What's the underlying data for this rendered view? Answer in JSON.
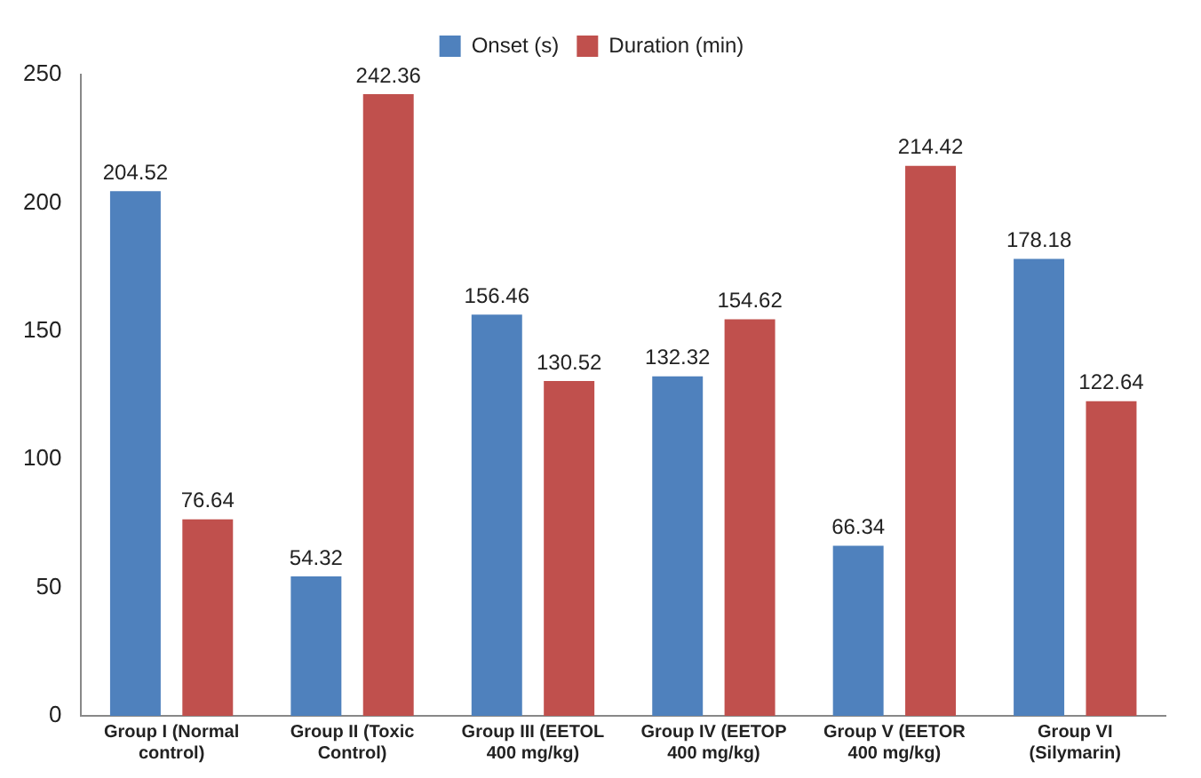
{
  "chart_data": {
    "type": "bar",
    "categories": [
      "Group I (Normal control)",
      "Group II (Toxic Control)",
      "Group III (EETOL 400 mg/kg)",
      "Group IV (EETOP 400 mg/kg)",
      "Group V (EETOR 400 mg/kg)",
      "Group VI (Silymarin)"
    ],
    "series": [
      {
        "name": "Onset (s)",
        "color": "#4f81bd",
        "values": [
          204.52,
          54.32,
          156.46,
          132.32,
          66.34,
          178.18
        ]
      },
      {
        "name": "Duration (min)",
        "color": "#c0504d",
        "values": [
          76.64,
          242.36,
          130.52,
          154.62,
          214.42,
          122.64
        ]
      }
    ],
    "ylim": [
      0,
      250
    ],
    "yticks": [
      0,
      50,
      100,
      150,
      200,
      250
    ],
    "grid": false,
    "legend": "top",
    "data_labels": true
  }
}
